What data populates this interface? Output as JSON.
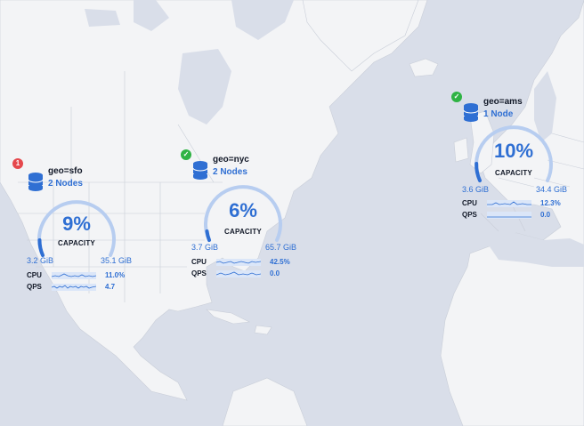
{
  "colors": {
    "accent": "#2f6fd3",
    "alert": "#e5484d",
    "ok": "#2fb344",
    "land": "#f3f4f6",
    "water": "#d9dee9",
    "border": "#c3c8d2"
  },
  "regions": [
    {
      "id": "sfo",
      "name": "geo=sfo",
      "nodes": "2 Nodes",
      "status": "alert",
      "badge": "1",
      "capacity_percent": "9%",
      "capacity_fraction": 0.09,
      "capacity_label": "CAPACITY",
      "used": "3.2 GiB",
      "total": "35.1 GiB",
      "cpu_label": "CPU",
      "cpu_value": "11.0%",
      "qps_label": "QPS",
      "qps_value": "4.7",
      "icon": "database-icon"
    },
    {
      "id": "nyc",
      "name": "geo=nyc",
      "nodes": "2 Nodes",
      "status": "ok",
      "badge": "✓",
      "capacity_percent": "6%",
      "capacity_fraction": 0.06,
      "capacity_label": "CAPACITY",
      "used": "3.7 GiB",
      "total": "65.7 GiB",
      "cpu_label": "CPU",
      "cpu_value": "42.5%",
      "qps_label": "QPS",
      "qps_value": "0.0",
      "icon": "database-icon"
    },
    {
      "id": "ams",
      "name": "geo=ams",
      "nodes": "1 Node",
      "status": "ok",
      "badge": "✓",
      "capacity_percent": "10%",
      "capacity_fraction": 0.1,
      "capacity_label": "CAPACITY",
      "used": "3.6 GiB",
      "total": "34.4 GiB",
      "cpu_label": "CPU",
      "cpu_value": "12.3%",
      "qps_label": "QPS",
      "qps_value": "0.0",
      "icon": "database-icon"
    }
  ]
}
